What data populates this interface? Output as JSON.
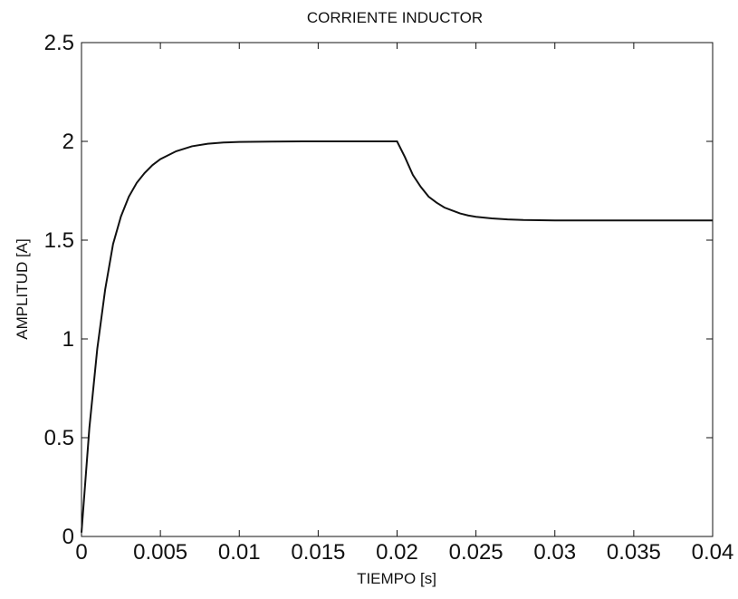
{
  "chart_data": {
    "type": "line",
    "title": "CORRIENTE INDUCTOR",
    "xlabel": "TIEMPO [s]",
    "ylabel": "AMPLITUD [A]",
    "xlim": [
      0,
      0.04
    ],
    "ylim": [
      0,
      2.5
    ],
    "xticks": [
      0,
      0.005,
      0.01,
      0.015,
      0.02,
      0.025,
      0.03,
      0.035,
      0.04
    ],
    "xtick_labels": [
      "0",
      "0.005",
      "0.01",
      "0.015",
      "0.02",
      "0.025",
      "0.03",
      "0.035",
      "0.04"
    ],
    "yticks": [
      0,
      0.5,
      1,
      1.5,
      2,
      2.5
    ],
    "ytick_labels": [
      "0",
      "0.5",
      "1",
      "1.5",
      "2",
      "2.5"
    ],
    "grid": false,
    "legend": "none",
    "line_color": "#111111",
    "series": [
      {
        "x": [
          0,
          0.0005,
          0.001,
          0.0015,
          0.002,
          0.0025,
          0.003,
          0.0035,
          0.004,
          0.0045,
          0.005,
          0.006,
          0.007,
          0.008,
          0.009,
          0.01,
          0.012,
          0.014,
          0.016,
          0.018,
          0.02,
          0.0205,
          0.021,
          0.0215,
          0.022,
          0.0225,
          0.023,
          0.0235,
          0.024,
          0.0245,
          0.025,
          0.026,
          0.027,
          0.028,
          0.03,
          0.032,
          0.034,
          0.036,
          0.038,
          0.04
        ],
        "y": [
          0.02,
          0.55,
          0.95,
          1.25,
          1.48,
          1.62,
          1.72,
          1.79,
          1.84,
          1.88,
          1.91,
          1.95,
          1.975,
          1.988,
          1.994,
          1.997,
          1.999,
          2.0,
          2.0,
          2.0,
          2.0,
          1.92,
          1.83,
          1.77,
          1.72,
          1.69,
          1.665,
          1.65,
          1.635,
          1.625,
          1.618,
          1.61,
          1.605,
          1.602,
          1.6,
          1.6,
          1.6,
          1.6,
          1.6,
          1.6
        ]
      }
    ]
  }
}
